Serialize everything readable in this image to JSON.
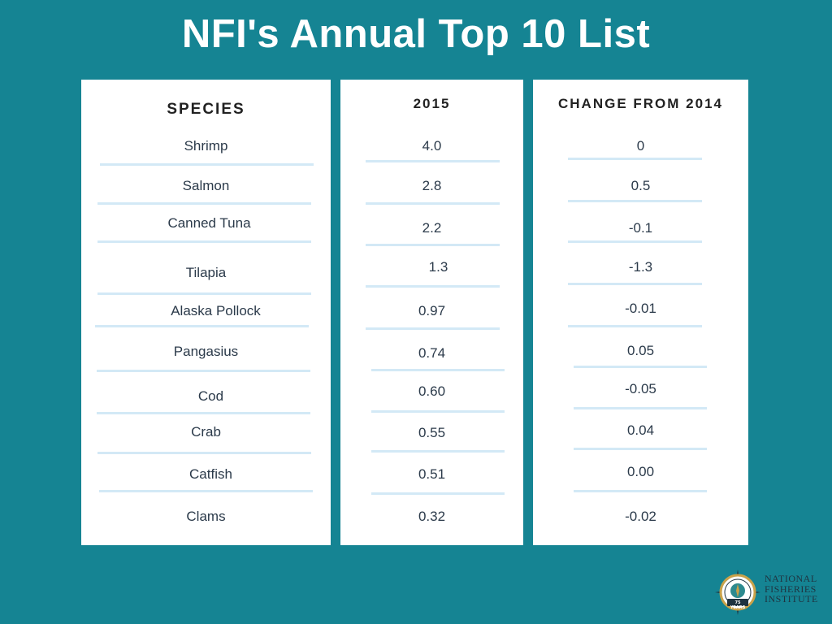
{
  "title": "NFI's Annual Top 10 List",
  "chart_data": {
    "type": "table",
    "title": "NFI's Annual Top 10 List",
    "columns": [
      "SPECIES",
      "2015",
      "CHANGE FROM 2014"
    ],
    "rows": [
      {
        "species": "Shrimp",
        "value_2015": "4.0",
        "change": "0"
      },
      {
        "species": "Salmon",
        "value_2015": "2.8",
        "change": "0.5"
      },
      {
        "species": "Canned Tuna",
        "value_2015": "2.2",
        "change": "-0.1"
      },
      {
        "species": "Tilapia",
        "value_2015": "1.3",
        "change": "-1.3"
      },
      {
        "species": "Alaska Pollock",
        "value_2015": "0.97",
        "change": "-0.01"
      },
      {
        "species": "Pangasius",
        "value_2015": "0.74",
        "change": "0.05"
      },
      {
        "species": "Cod",
        "value_2015": "0.60",
        "change": "-0.05"
      },
      {
        "species": "Crab",
        "value_2015": "0.55",
        "change": "0.04"
      },
      {
        "species": "Catfish",
        "value_2015": "0.51",
        "change": "0.00"
      },
      {
        "species": "Clams",
        "value_2015": "0.32",
        "change": "-0.02"
      }
    ]
  },
  "logo": {
    "text_lines": [
      "NATIONAL",
      "FISHERIES",
      "INSTITUTE"
    ],
    "badge": "75 YEARS",
    "colors": {
      "navy": "#1f3340",
      "gold": "#c9a24a",
      "teal": "#2d8a8f"
    }
  },
  "colors": {
    "background": "#158493",
    "rule": "#d3e9f6",
    "panel": "#ffffff"
  }
}
